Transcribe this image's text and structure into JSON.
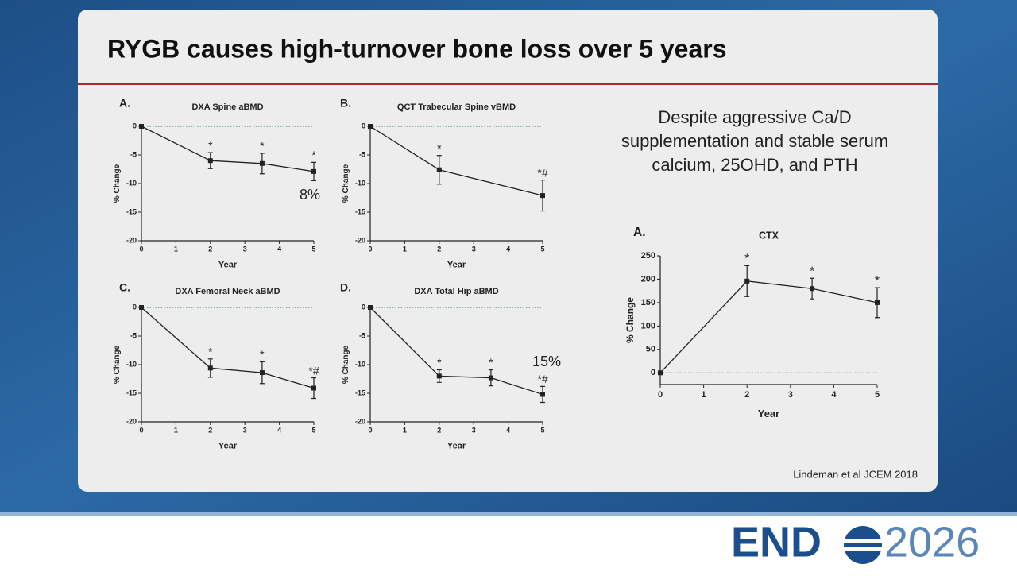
{
  "slide": {
    "title": "RYGB causes high-turnover bone loss over 5 years",
    "note_lines": [
      "Despite aggressive Ca/D",
      "supplementation and stable serum",
      "calcium, 25OHD, and PTH"
    ],
    "citation": "Lindeman et al JCEM 2018",
    "logo_left": "END",
    "logo_right": "2026"
  },
  "chart_data": [
    {
      "type": "line",
      "panel": "A.",
      "title": "DXA Spine aBMD",
      "x_label": "Year",
      "y_label": "% Change",
      "x": [
        0,
        2,
        3.5,
        5
      ],
      "values": [
        0,
        -6,
        -6.5,
        -7.9
      ],
      "errors": [
        0,
        1.4,
        1.8,
        1.6
      ],
      "markers": [
        null,
        "*",
        "*",
        "*"
      ],
      "annotation": "8%",
      "xlim": [
        0,
        5
      ],
      "xticks": [
        0,
        1,
        2,
        3,
        4,
        5
      ],
      "ylim": [
        -20,
        0
      ],
      "yticks": [
        -20,
        -15,
        -10,
        -5,
        0
      ],
      "zero_line": true,
      "color": "#222222"
    },
    {
      "type": "line",
      "panel": "B.",
      "title": "QCT Trabecular Spine vBMD",
      "x_label": "Year",
      "y_label": "% Change",
      "x": [
        0,
        2,
        5
      ],
      "values": [
        0,
        -7.6,
        -12.1
      ],
      "errors": [
        0,
        2.5,
        2.7
      ],
      "markers": [
        null,
        "*",
        "*#"
      ],
      "xlim": [
        0,
        5
      ],
      "xticks": [
        0,
        1,
        2,
        3,
        4,
        5
      ],
      "ylim": [
        -20,
        0
      ],
      "yticks": [
        -20,
        -15,
        -10,
        -5,
        0
      ],
      "zero_line": true,
      "color": "#222222"
    },
    {
      "type": "line",
      "panel": "C.",
      "title": "DXA Femoral Neck aBMD",
      "x_label": "Year",
      "y_label": "% Change",
      "x": [
        0,
        2,
        3.5,
        5
      ],
      "values": [
        0,
        -10.6,
        -11.4,
        -14.1
      ],
      "errors": [
        0,
        1.6,
        1.9,
        1.8
      ],
      "markers": [
        null,
        "*",
        "*",
        "*#"
      ],
      "xlim": [
        0,
        5
      ],
      "xticks": [
        0,
        1,
        2,
        3,
        4,
        5
      ],
      "ylim": [
        -20,
        0
      ],
      "yticks": [
        -20,
        -15,
        -10,
        -5,
        0
      ],
      "zero_line": true,
      "color": "#222222"
    },
    {
      "type": "line",
      "panel": "D.",
      "title": "DXA Total Hip aBMD",
      "x_label": "Year",
      "y_label": "% Change",
      "x": [
        0,
        2,
        3.5,
        5
      ],
      "values": [
        0,
        -12,
        -12.3,
        -15.2
      ],
      "errors": [
        0,
        1.1,
        1.4,
        1.4
      ],
      "markers": [
        null,
        "*",
        "*",
        "*#"
      ],
      "annotation": "15%",
      "xlim": [
        0,
        5
      ],
      "xticks": [
        0,
        1,
        2,
        3,
        4,
        5
      ],
      "ylim": [
        -20,
        0
      ],
      "yticks": [
        -20,
        -15,
        -10,
        -5,
        0
      ],
      "zero_line": true,
      "color": "#222222"
    },
    {
      "type": "line",
      "panel": "A.",
      "title": "CTX",
      "x_label": "Year",
      "y_label": "% Change",
      "x": [
        0,
        2,
        3.5,
        5
      ],
      "values": [
        0,
        196,
        180,
        150
      ],
      "errors": [
        0,
        33,
        22,
        32
      ],
      "markers": [
        null,
        "*",
        "*",
        "*"
      ],
      "xlim": [
        0,
        5
      ],
      "xticks": [
        0,
        1,
        2,
        3,
        4,
        5
      ],
      "ylim": [
        -25,
        250
      ],
      "yticks": [
        0,
        50,
        100,
        150,
        200,
        250
      ],
      "zero_line": true,
      "color": "#222222"
    }
  ]
}
